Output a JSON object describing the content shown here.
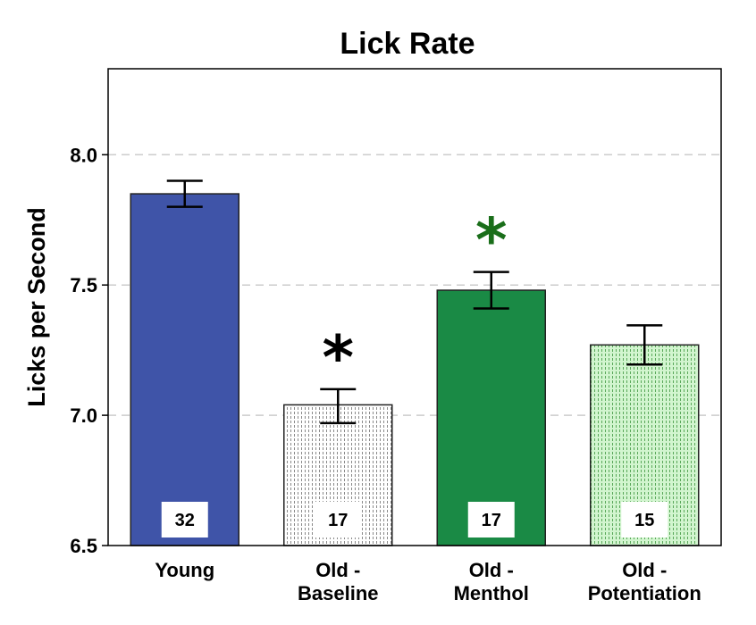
{
  "chart_data": {
    "type": "bar",
    "title": "Lick Rate",
    "xlabel": "",
    "ylabel": "Licks per Second",
    "ylim": [
      6.5,
      8.33
    ],
    "yticks": [
      "6.5",
      "7.0",
      "7.5",
      "8.0"
    ],
    "grid": "horizontal-dashed",
    "categories": [
      [
        "Young"
      ],
      [
        "Old -",
        "Baseline"
      ],
      [
        "Old -",
        "Menthol"
      ],
      [
        "Old -",
        "Potentiation"
      ]
    ],
    "values": [
      7.85,
      7.04,
      7.48,
      7.27
    ],
    "error_low": [
      7.8,
      6.97,
      7.41,
      7.195
    ],
    "error_high": [
      7.9,
      7.1,
      7.55,
      7.345
    ],
    "n_labels": [
      "32",
      "17",
      "17",
      "15"
    ],
    "significance": [
      "",
      "*",
      "*",
      ""
    ],
    "colors": {
      "bars": [
        "#3f54a8",
        "#ffffff",
        "#1a8a45",
        "#d2f5cf"
      ],
      "bar_patterns": [
        "none",
        "dots-gray",
        "none",
        "dots-green"
      ],
      "stars": [
        "#000000",
        "#000000",
        "#1a6e1a",
        "#000000"
      ],
      "grid": "#cccccc",
      "axis": "#000000"
    }
  }
}
